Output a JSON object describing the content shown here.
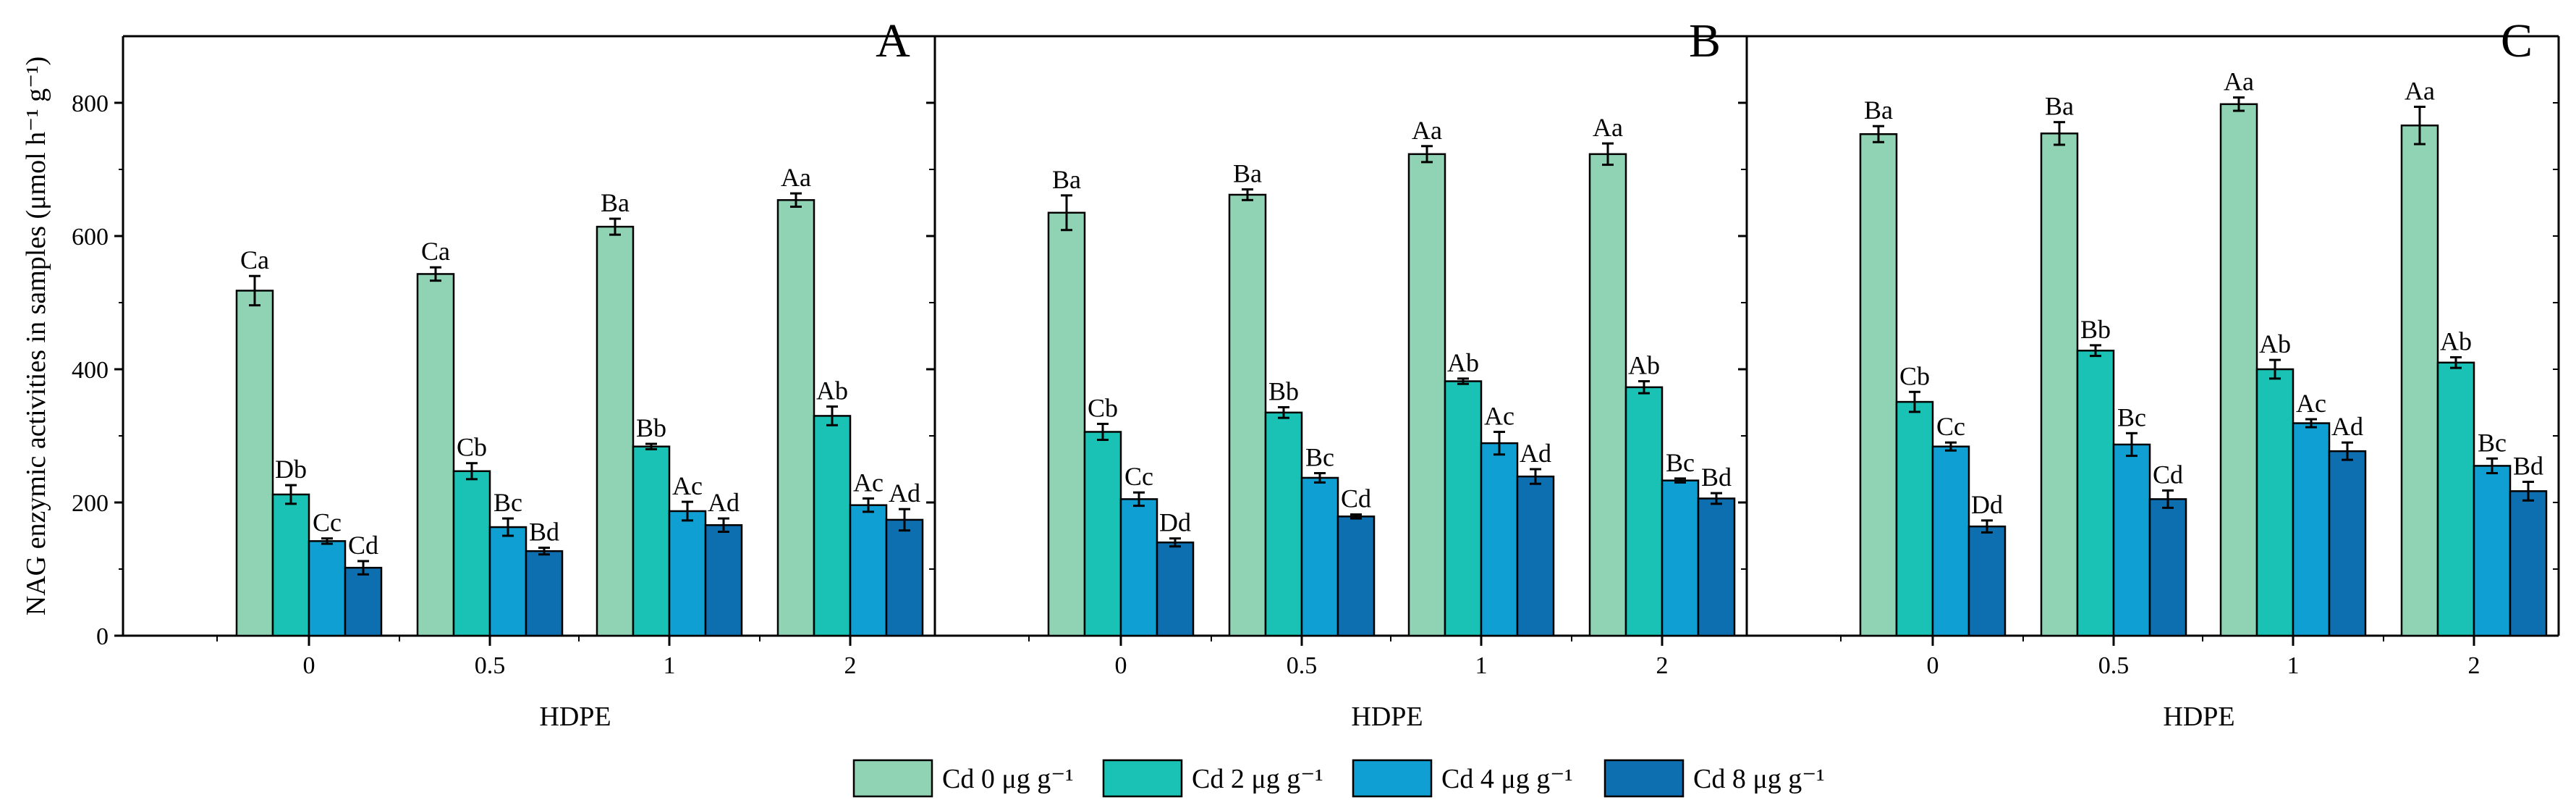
{
  "chart_data": {
    "type": "bar",
    "ylabel": "NAG enzymic activities in samples (μmol h⁻¹ g⁻¹)",
    "ylim": [
      0,
      900
    ],
    "yticks": [
      0,
      200,
      400,
      600,
      800
    ],
    "xlabel": "HDPE",
    "categories": [
      "0",
      "0.5",
      "1",
      "2"
    ],
    "legend": [
      {
        "name": "Cd 0 μg g⁻¹",
        "color": "#8fd3b4"
      },
      {
        "name": "Cd 2 μg g⁻¹",
        "color": "#19c2b4"
      },
      {
        "name": "Cd 4 μg g⁻¹",
        "color": "#0f9fd2"
      },
      {
        "name": "Cd 8 μg g⁻¹",
        "color": "#0d6fb0"
      }
    ],
    "panels": [
      {
        "label": "A",
        "values": [
          [
            518,
            212,
            142,
            102
          ],
          [
            543,
            247,
            163,
            127
          ],
          [
            614,
            284,
            187,
            166
          ],
          [
            654,
            330,
            196,
            174
          ]
        ],
        "errors": [
          [
            22,
            14,
            4,
            10
          ],
          [
            10,
            12,
            13,
            5
          ],
          [
            12,
            4,
            14,
            10
          ],
          [
            10,
            14,
            10,
            16
          ]
        ],
        "sig": [
          [
            "Ca",
            "Db",
            "Cc",
            "Cd"
          ],
          [
            "Ca",
            "Cb",
            "Bc",
            "Bd"
          ],
          [
            "Ba",
            "Bb",
            "Ac",
            "Ad"
          ],
          [
            "Aa",
            "Ab",
            "Ac",
            "Ad"
          ]
        ]
      },
      {
        "label": "B",
        "values": [
          [
            635,
            306,
            205,
            140
          ],
          [
            662,
            335,
            237,
            179
          ],
          [
            723,
            382,
            289,
            239
          ],
          [
            723,
            373,
            233,
            206
          ]
        ],
        "errors": [
          [
            26,
            12,
            10,
            6
          ],
          [
            8,
            8,
            7,
            3
          ],
          [
            12,
            4,
            17,
            11
          ],
          [
            16,
            9,
            3,
            8
          ]
        ],
        "sig": [
          [
            "Ba",
            "Cb",
            "Cc",
            "Dd"
          ],
          [
            "Ba",
            "Bb",
            "Bc",
            "Cd"
          ],
          [
            "Aa",
            "Ab",
            "Ac",
            "Ad"
          ],
          [
            "Aa",
            "Ab",
            "Bc",
            "Bd"
          ]
        ]
      },
      {
        "label": "C",
        "values": [
          [
            753,
            351,
            284,
            164
          ],
          [
            754,
            428,
            287,
            205
          ],
          [
            798,
            400,
            319,
            277
          ],
          [
            766,
            410,
            255,
            217
          ]
        ],
        "errors": [
          [
            12,
            15,
            6,
            9
          ],
          [
            17,
            8,
            17,
            13
          ],
          [
            10,
            14,
            6,
            13
          ],
          [
            28,
            8,
            11,
            14
          ]
        ],
        "sig": [
          [
            "Ba",
            "Cb",
            "Cc",
            "Dd"
          ],
          [
            "Ba",
            "Bb",
            "Bc",
            "Cd"
          ],
          [
            "Aa",
            "Ab",
            "Ac",
            "Ad"
          ],
          [
            "Aa",
            "Ab",
            "Bc",
            "Bd"
          ]
        ]
      }
    ]
  }
}
